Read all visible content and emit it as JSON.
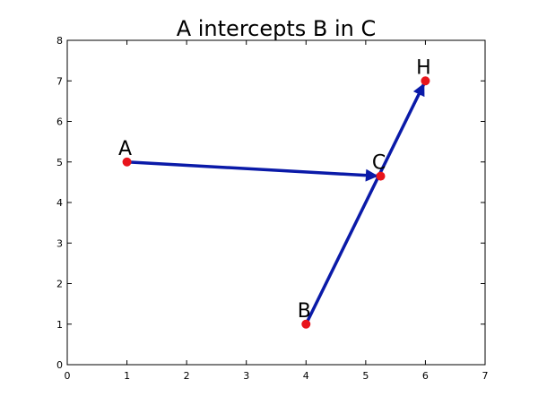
{
  "chart_data": {
    "type": "scatter",
    "title": "A intercepts B in C",
    "xlabel": "",
    "ylabel": "",
    "xlim": [
      0,
      7
    ],
    "ylim": [
      0,
      8
    ],
    "xticks": [
      0,
      1,
      2,
      3,
      4,
      5,
      6,
      7
    ],
    "yticks": [
      0,
      1,
      2,
      3,
      4,
      5,
      6,
      7,
      8
    ],
    "grid": false,
    "point_color": "#e8141b",
    "arrow_color": "#0a1aa8",
    "points": [
      {
        "label": "A",
        "x": 1,
        "y": 5
      },
      {
        "label": "B",
        "x": 4,
        "y": 1
      },
      {
        "label": "C",
        "x": 5.25,
        "y": 4.65
      },
      {
        "label": "H",
        "x": 6,
        "y": 7
      }
    ],
    "arrows": [
      {
        "from": "A",
        "to": "C"
      },
      {
        "from": "B",
        "to": "H"
      }
    ]
  }
}
